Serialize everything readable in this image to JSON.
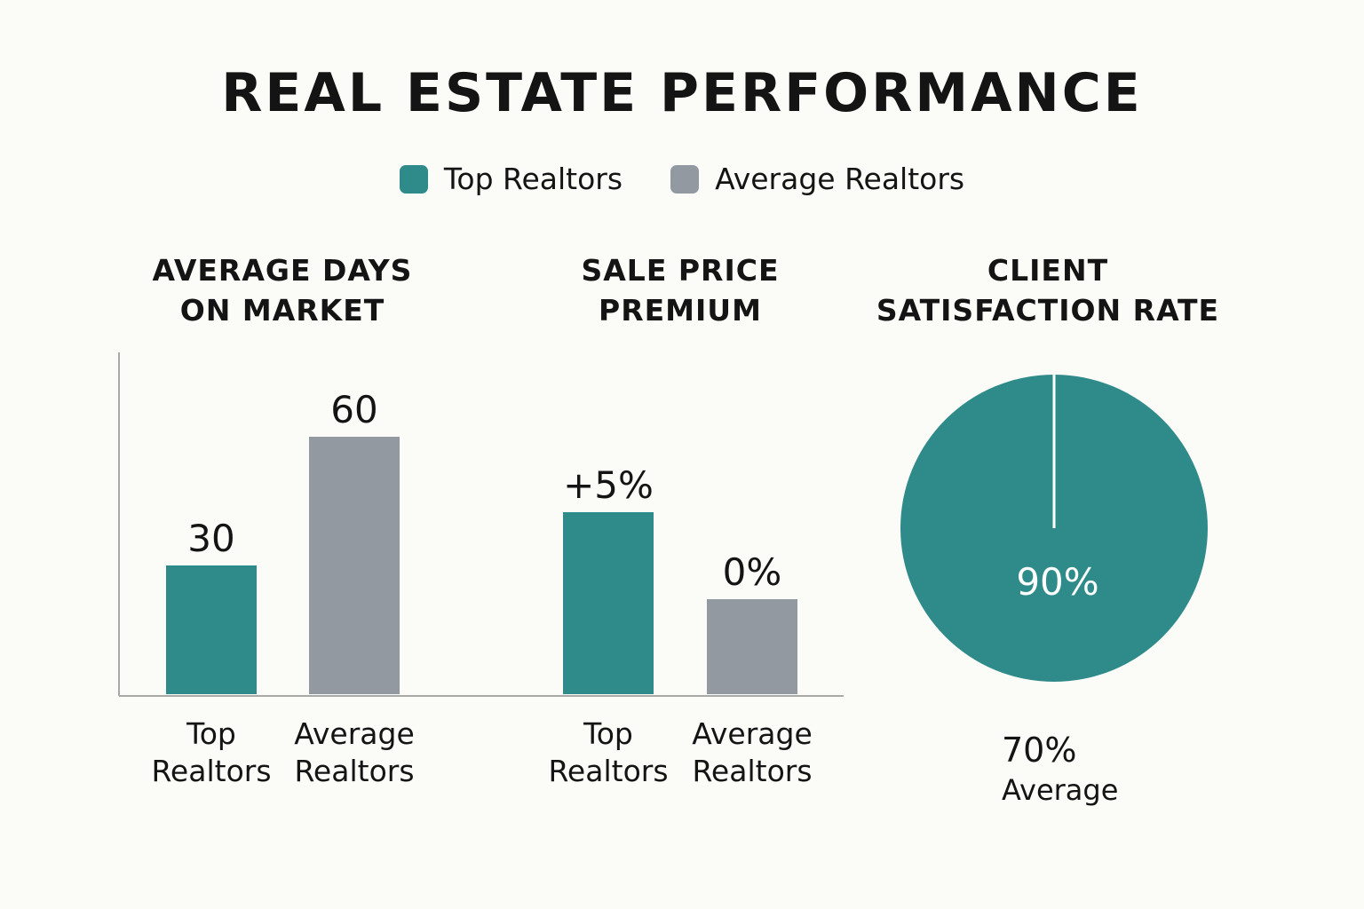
{
  "title": "REAL ESTATE PERFORMANCE",
  "legend": [
    {
      "label": "Top Realtors",
      "color": "#2e8b89"
    },
    {
      "label": "Average Realtors",
      "color": "#9399a0"
    }
  ],
  "chart_data": [
    {
      "type": "bar",
      "title_lines": [
        "AVERAGE DAYS",
        "ON MARKET"
      ],
      "categories": [
        [
          "Top",
          "Realtors"
        ],
        [
          "Average",
          "Realtors"
        ]
      ],
      "values": [
        30,
        60
      ],
      "labels": [
        "30",
        "60"
      ],
      "colors": [
        "#2e8b89",
        "#9399a0"
      ]
    },
    {
      "type": "bar",
      "title_lines": [
        "SALE PRICE",
        "PREMIUM"
      ],
      "categories": [
        [
          "Top",
          "Realtors"
        ],
        [
          "Average",
          "Realtors"
        ]
      ],
      "values": [
        5,
        0
      ],
      "labels": [
        "+5%",
        "0%"
      ],
      "colors": [
        "#2e8b89",
        "#9399a0"
      ]
    },
    {
      "type": "pie",
      "title_lines": [
        "CLIENT",
        "SATISFACTION RATE"
      ],
      "value": 90,
      "label": "90%",
      "color": "#2e8b89",
      "average": {
        "value": "70%",
        "label": "Average"
      }
    }
  ]
}
